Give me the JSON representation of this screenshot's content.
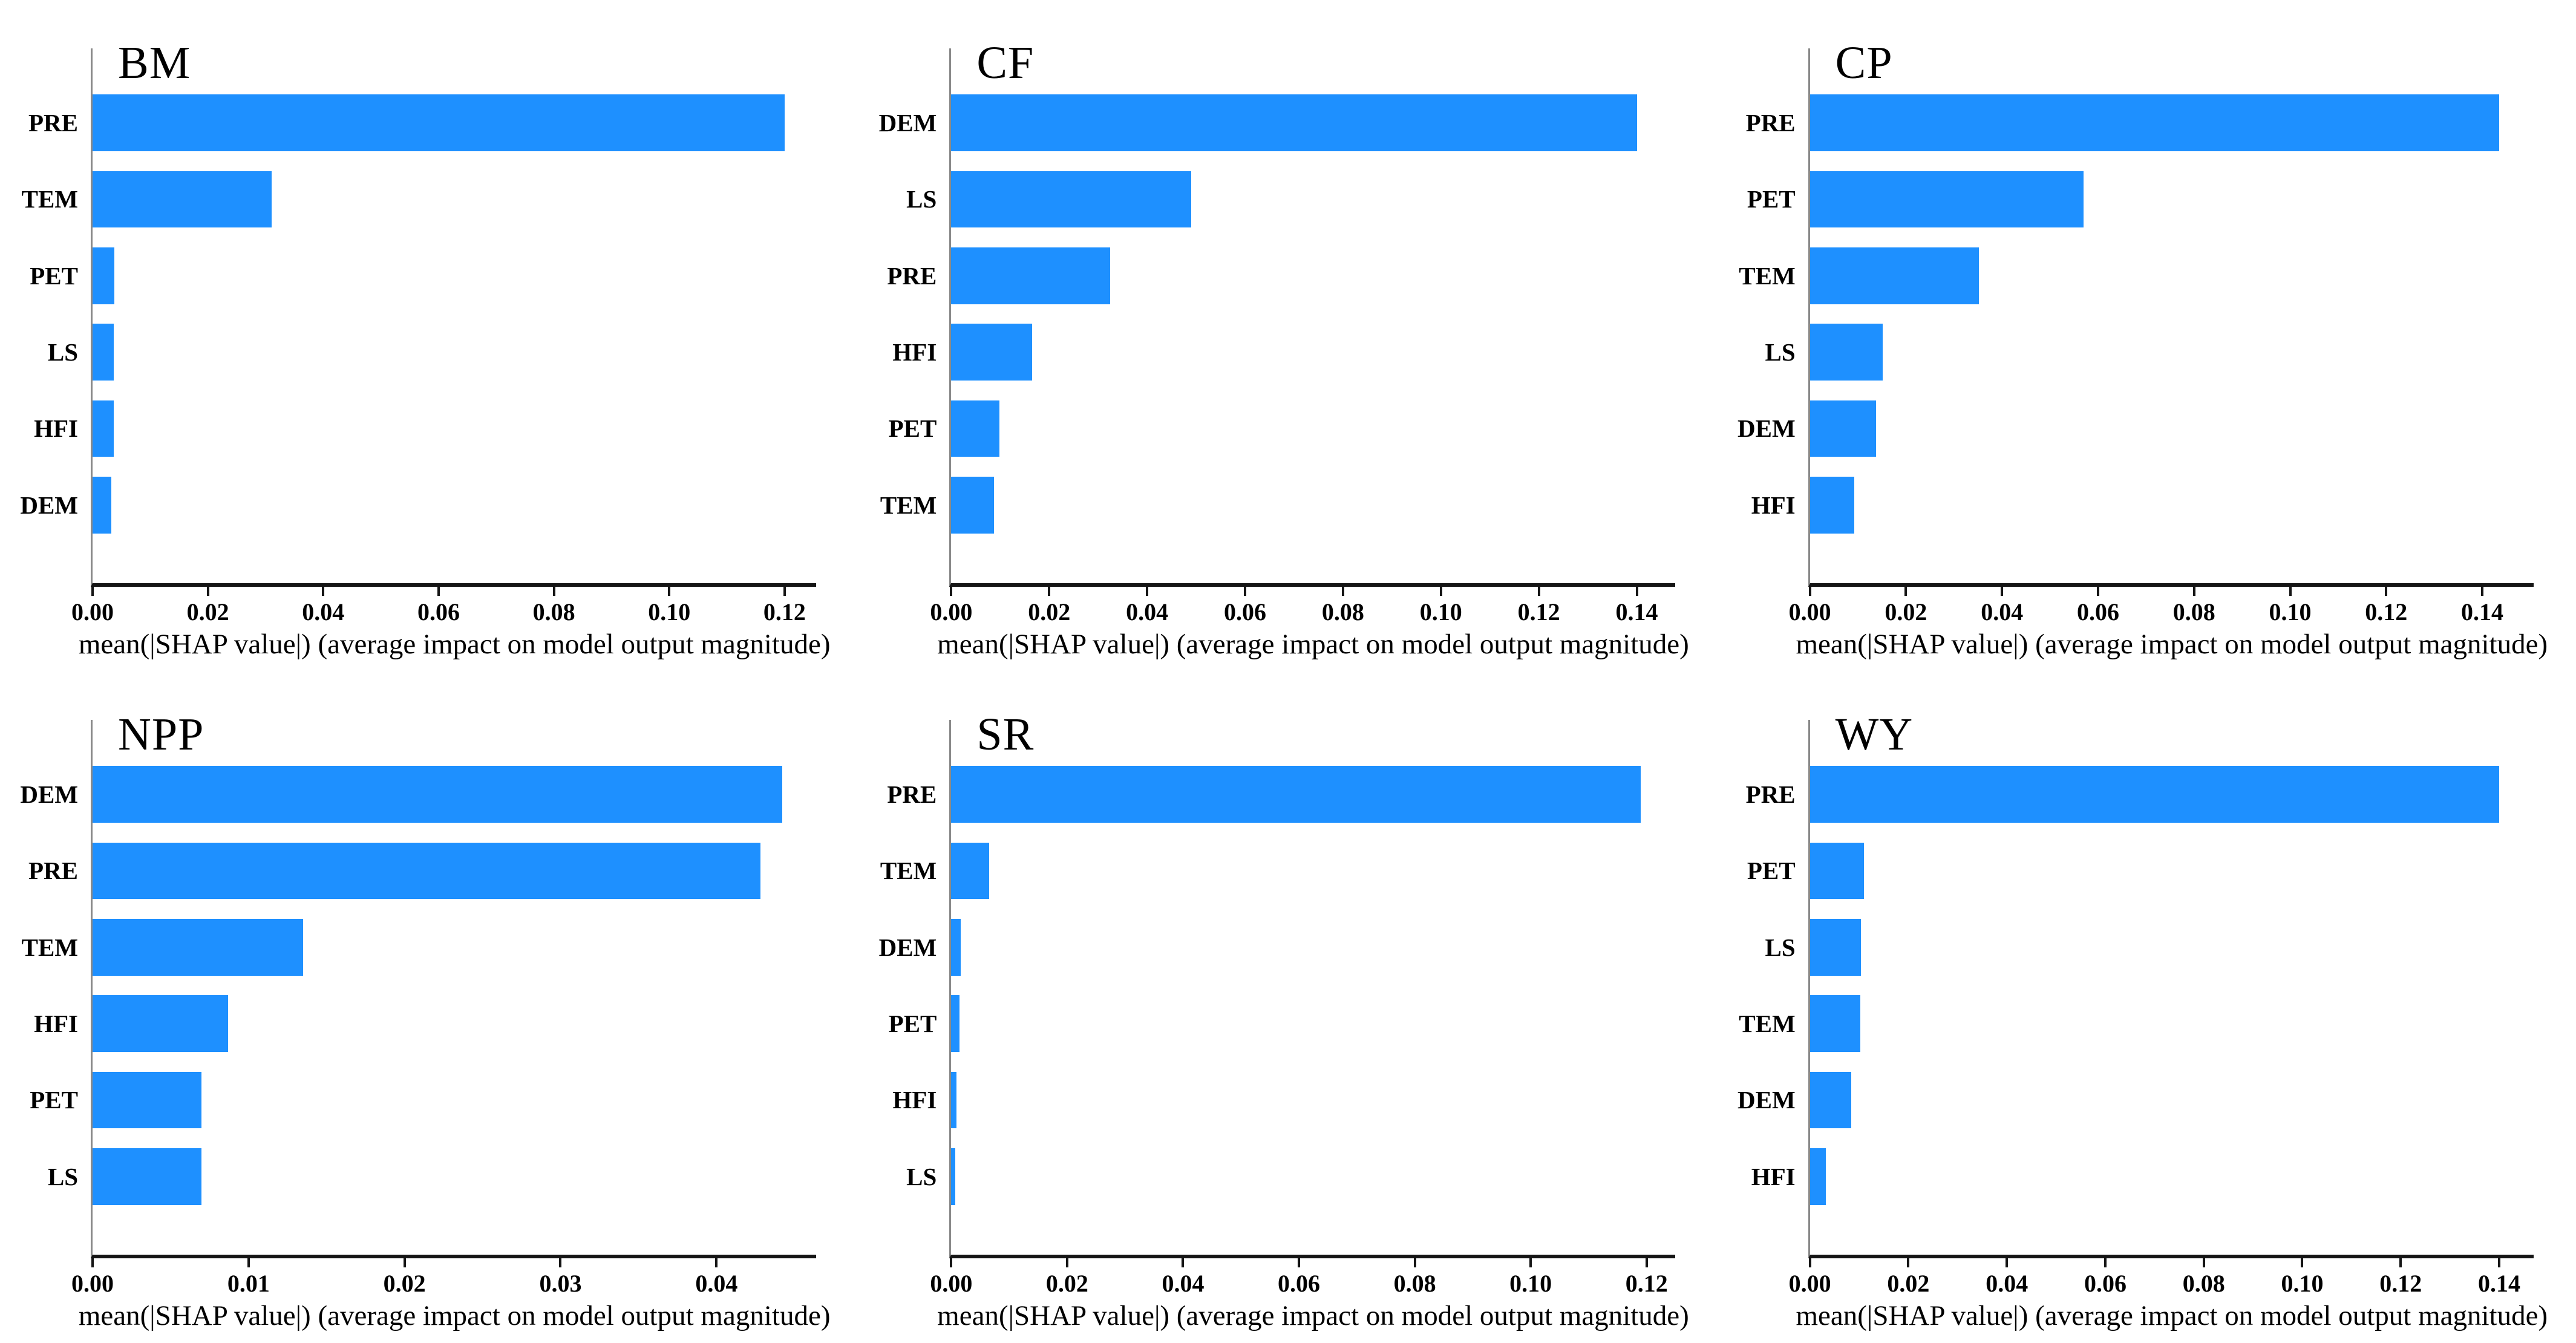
{
  "figure": {
    "kind": "shap-feature-importance-grid",
    "rows": 2,
    "cols": 3,
    "background": "#ffffff",
    "bar_color": "#1E90FF",
    "spine_color": "#8a8a8a",
    "axis_color": "#151515"
  },
  "chart_data": [
    {
      "type": "bar",
      "orientation": "horizontal",
      "title": "BM",
      "categories": [
        "PRE",
        "TEM",
        "PET",
        "LS",
        "HFI",
        "DEM"
      ],
      "values": [
        0.12,
        0.031,
        0.0038,
        0.0037,
        0.0037,
        0.0033
      ],
      "xlabel": "mean(|SHAP value|) (average impact on model output magnitude)",
      "xlim": [
        0,
        0.1255
      ],
      "xticks": [
        0,
        0.02,
        0.04,
        0.06,
        0.08,
        0.1,
        0.12
      ],
      "xtick_labels": [
        "0.00",
        "0.02",
        "0.04",
        "0.06",
        "0.08",
        "0.10",
        "0.12"
      ],
      "grid": false,
      "legend": false
    },
    {
      "type": "bar",
      "orientation": "horizontal",
      "title": "CF",
      "categories": [
        "DEM",
        "LS",
        "PRE",
        "HFI",
        "PET",
        "TEM"
      ],
      "values": [
        0.14,
        0.049,
        0.0325,
        0.0165,
        0.0098,
        0.0087
      ],
      "xlabel": "mean(|SHAP value|) (average impact on model output magnitude)",
      "xlim": [
        0,
        0.1478
      ],
      "xticks": [
        0,
        0.02,
        0.04,
        0.06,
        0.08,
        0.1,
        0.12,
        0.14
      ],
      "xtick_labels": [
        "0.00",
        "0.02",
        "0.04",
        "0.06",
        "0.08",
        "0.10",
        "0.12",
        "0.14"
      ],
      "grid": false,
      "legend": false
    },
    {
      "type": "bar",
      "orientation": "horizontal",
      "title": "CP",
      "categories": [
        "PRE",
        "PET",
        "TEM",
        "LS",
        "DEM",
        "HFI"
      ],
      "values": [
        0.1435,
        0.057,
        0.0352,
        0.0152,
        0.0138,
        0.0093
      ],
      "xlabel": "mean(|SHAP value|) (average impact on model output magnitude)",
      "xlim": [
        0,
        0.1507
      ],
      "xticks": [
        0,
        0.02,
        0.04,
        0.06,
        0.08,
        0.1,
        0.12,
        0.14
      ],
      "xtick_labels": [
        "0.00",
        "0.02",
        "0.04",
        "0.06",
        "0.08",
        "0.10",
        "0.12",
        "0.14"
      ],
      "grid": false,
      "legend": false
    },
    {
      "type": "bar",
      "orientation": "horizontal",
      "title": "NPP",
      "categories": [
        "DEM",
        "PRE",
        "TEM",
        "HFI",
        "PET",
        "LS"
      ],
      "values": [
        0.0442,
        0.0428,
        0.0135,
        0.0087,
        0.007,
        0.007
      ],
      "xlabel": "mean(|SHAP value|) (average impact on model output magnitude)",
      "xlim": [
        0,
        0.0464
      ],
      "xticks": [
        0,
        0.01,
        0.02,
        0.03,
        0.04
      ],
      "xtick_labels": [
        "0.00",
        "0.01",
        "0.02",
        "0.03",
        "0.04"
      ],
      "grid": false,
      "legend": false
    },
    {
      "type": "bar",
      "orientation": "horizontal",
      "title": "SR",
      "categories": [
        "PRE",
        "TEM",
        "DEM",
        "PET",
        "HFI",
        "LS"
      ],
      "values": [
        0.119,
        0.0065,
        0.0016,
        0.0014,
        0.0009,
        0.0007
      ],
      "xlabel": "mean(|SHAP value|) (average impact on model output magnitude)",
      "xlim": [
        0,
        0.1249
      ],
      "xticks": [
        0,
        0.02,
        0.04,
        0.06,
        0.08,
        0.1,
        0.12
      ],
      "xtick_labels": [
        "0.00",
        "0.02",
        "0.04",
        "0.06",
        "0.08",
        "0.10",
        "0.12"
      ],
      "grid": false,
      "legend": false
    },
    {
      "type": "bar",
      "orientation": "horizontal",
      "title": "WY",
      "categories": [
        "PRE",
        "PET",
        "LS",
        "TEM",
        "DEM",
        "HFI"
      ],
      "values": [
        0.14,
        0.011,
        0.0104,
        0.0102,
        0.0084,
        0.0032
      ],
      "xlabel": "mean(|SHAP value|) (average impact on model output magnitude)",
      "xlim": [
        0,
        0.147
      ],
      "xticks": [
        0,
        0.02,
        0.04,
        0.06,
        0.08,
        0.1,
        0.12,
        0.14
      ],
      "xtick_labels": [
        "0.00",
        "0.02",
        "0.04",
        "0.06",
        "0.08",
        "0.10",
        "0.12",
        "0.14"
      ],
      "grid": false,
      "legend": false
    }
  ]
}
